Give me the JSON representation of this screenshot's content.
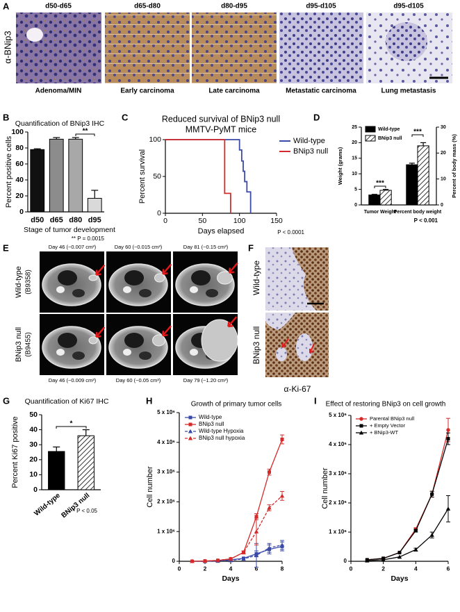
{
  "figure": {
    "A": {
      "label": "A",
      "stain": "α-BNip3",
      "stages": [
        "d50-d65",
        "d65-d80",
        "d80-d95",
        "d95-d105",
        "d95-d105"
      ],
      "captions": [
        "Adenoma/MIN",
        "Early carcinoma",
        "Late carcinoma",
        "Metastatic carcinoma",
        "Lung metastasis"
      ]
    },
    "E": {
      "label": "E",
      "rows": [
        {
          "genotype": "Wild-type",
          "mouse": "(B9358)",
          "captions": [
            "Day 46 (~0.007 cm³)",
            "Day 60 (~0.015 cm³)",
            "Day 81 (~0.15 cm³)"
          ]
        },
        {
          "genotype": "BNip3 null",
          "mouse": "(B9455)",
          "captions": [
            "Day 46 (~0.009 cm³)",
            "Day 60 (~0.05 cm³)",
            "Day 79 (~1.20 cm³)"
          ]
        }
      ]
    },
    "F": {
      "label": "F",
      "rows": [
        "Wild-type",
        "BNip3 null"
      ],
      "stain": "α-Ki-67"
    }
  },
  "chart_data": [
    {
      "type": "bar",
      "label": "B",
      "title": "Quantification of BNip3 IHC",
      "y_label": "Percent positive cells",
      "x_label": "Stage of tumor development",
      "categories": [
        "d50",
        "d65",
        "d80",
        "d95"
      ],
      "values": [
        78,
        91,
        91,
        17
      ],
      "errors": [
        1,
        2,
        2,
        10
      ],
      "colors": [
        "#111111",
        "#8c8c8c",
        "#a8a8a8",
        "#d9d9d9"
      ],
      "ylim": [
        0,
        100
      ],
      "yticks": [
        0,
        20,
        40,
        60,
        80,
        100
      ],
      "annotations": [
        "**"
      ],
      "note": "** P = 0.0015"
    },
    {
      "type": "line",
      "step": true,
      "label": "C",
      "title": [
        "Reduced survival of BNip3 null",
        "MMTV-PyMT mice"
      ],
      "y_label": "Percent survival",
      "x_label": "Days elapsed",
      "series": [
        {
          "name": "Wild-type",
          "color": "#3a4aa8",
          "x": [
            0,
            100,
            103,
            105,
            107,
            110,
            115
          ],
          "values": [
            100,
            86,
            71,
            57,
            43,
            29,
            0
          ]
        },
        {
          "name": "BNip3 null",
          "color": "#d42a2a",
          "x": [
            0,
            80,
            88
          ],
          "values": [
            100,
            27,
            0
          ]
        }
      ],
      "xlim": [
        0,
        150
      ],
      "xticks": [
        0,
        50,
        100,
        150
      ],
      "ylim": [
        0,
        100
      ],
      "yticks": [
        0,
        50,
        100
      ],
      "note": "P < 0.0001"
    },
    {
      "type": "bar",
      "label": "D",
      "y_label": "Weight (grams)",
      "y2_label": "Percent of body mass (%)",
      "categories": [
        "Tumor Weight",
        "Percent body weight"
      ],
      "category_axes": [
        "y",
        "y2"
      ],
      "series": [
        {
          "name": "Wild-type",
          "color": "#000000",
          "hatch": false,
          "values": [
            3.2,
            15.5
          ],
          "errors": [
            0.2,
            0.6
          ]
        },
        {
          "name": "BNip3 null",
          "color": "#000000",
          "hatch": true,
          "values": [
            4.7,
            22.8
          ],
          "errors": [
            0.3,
            1.2
          ]
        }
      ],
      "ylim": [
        0,
        25
      ],
      "yticks": [
        0,
        5,
        10,
        15,
        20,
        25
      ],
      "y2lim": [
        0,
        30
      ],
      "y2ticks": [
        0,
        10,
        20,
        30
      ],
      "annotations": [
        "***",
        "***"
      ],
      "note": "P < 0.001"
    },
    {
      "type": "bar",
      "label": "G",
      "title": "Quantification of Ki67 IHC",
      "y_label": "Percent Ki67 positive",
      "categories": [
        "Wild-type",
        "BNip3 null"
      ],
      "values": [
        25.5,
        36
      ],
      "errors": [
        3,
        4
      ],
      "colors": [
        "#000000",
        "#ffffff"
      ],
      "hatch": [
        false,
        true
      ],
      "ylim": [
        0,
        50
      ],
      "yticks": [
        0,
        10,
        20,
        30,
        40,
        50
      ],
      "annotations": [
        "*"
      ],
      "note": "* P < 0.05"
    },
    {
      "type": "line",
      "label": "H",
      "title": "Growth of primary tumor cells",
      "y_label": "Cell number",
      "x_label": "Days",
      "x": [
        1,
        2,
        3,
        4,
        5,
        6,
        7,
        8
      ],
      "series": [
        {
          "name": "Wild-type",
          "color": "#3a4aa8",
          "marker": "square",
          "dash": false,
          "values": [
            0,
            0,
            20000,
            50000,
            100000,
            250000,
            400000,
            500000
          ],
          "errors": [
            0,
            0,
            0,
            0,
            0,
            100000,
            150000,
            150000
          ]
        },
        {
          "name": "BNip3 null",
          "color": "#d42a2a",
          "marker": "square",
          "dash": false,
          "values": [
            0,
            10000,
            30000,
            80000,
            300000,
            1500000,
            3000000,
            4100000
          ],
          "errors": [
            0,
            0,
            0,
            0,
            50000,
            100000,
            100000,
            150000
          ]
        },
        {
          "name": "Wild-type Hypoxia",
          "color": "#3a4aa8",
          "marker": "triangle",
          "dash": true,
          "values": [
            0,
            0,
            10000,
            30000,
            80000,
            200000,
            450000,
            550000
          ],
          "errors": [
            0,
            0,
            0,
            0,
            0,
            400000,
            150000,
            150000
          ]
        },
        {
          "name": "BNip3 null hypoxia",
          "color": "#d42a2a",
          "marker": "triangle",
          "dash": true,
          "values": [
            0,
            10000,
            30000,
            80000,
            300000,
            1000000,
            1800000,
            2200000
          ],
          "errors": [
            0,
            0,
            0,
            0,
            50000,
            450000,
            100000,
            150000
          ]
        }
      ],
      "xlim": [
        0,
        8
      ],
      "xticks": [
        0,
        2,
        4,
        6,
        8
      ],
      "ylim": [
        0,
        5000000
      ],
      "yticks": [
        0,
        {
          "value": 1000000,
          "label": "1 x 10⁶"
        },
        {
          "value": 2000000,
          "label": "2 x 10⁶"
        },
        {
          "value": 3000000,
          "label": "3 x 10⁶"
        },
        {
          "value": 4000000,
          "label": "4 x 10⁶"
        },
        {
          "value": 5000000,
          "label": "5 x 10⁶"
        }
      ]
    },
    {
      "type": "line",
      "label": "I",
      "title": "Effect of restoring BNip3 on cell growth",
      "y_label": "Cell number",
      "x_label": "Days",
      "x": [
        1,
        2,
        3,
        4,
        5,
        6
      ],
      "series": [
        {
          "name": "Parental BNip3 null",
          "color": "#d42a2a",
          "marker": "circle",
          "dash": false,
          "values": [
            50000,
            100000,
            300000,
            1100000,
            2300000,
            4500000
          ],
          "errors": [
            0,
            0,
            0,
            50000,
            100000,
            400000
          ]
        },
        {
          "name": "+ Empty Vector",
          "color": "#000000",
          "marker": "square",
          "dash": false,
          "values": [
            50000,
            100000,
            300000,
            1050000,
            2300000,
            4200000
          ],
          "errors": [
            0,
            0,
            0,
            50000,
            100000,
            200000
          ]
        },
        {
          "name": "+ BNip3-WT",
          "color": "#000000",
          "marker": "triangle",
          "dash": false,
          "values": [
            20000,
            50000,
            150000,
            400000,
            900000,
            1800000
          ],
          "errors": [
            0,
            0,
            0,
            50000,
            100000,
            450000
          ]
        }
      ],
      "xlim": [
        0,
        6
      ],
      "xticks": [
        0,
        2,
        4,
        6
      ],
      "ylim": [
        0,
        5000000
      ],
      "yticks": [
        0,
        {
          "value": 1000000,
          "label": "1 x 10⁶"
        },
        {
          "value": 2000000,
          "label": "2 x 10⁶"
        },
        {
          "value": 3000000,
          "label": "3 x 10⁶"
        },
        {
          "value": 4000000,
          "label": "4 x 10⁶"
        },
        {
          "value": 5000000,
          "label": "5 x 10⁶"
        }
      ]
    }
  ]
}
